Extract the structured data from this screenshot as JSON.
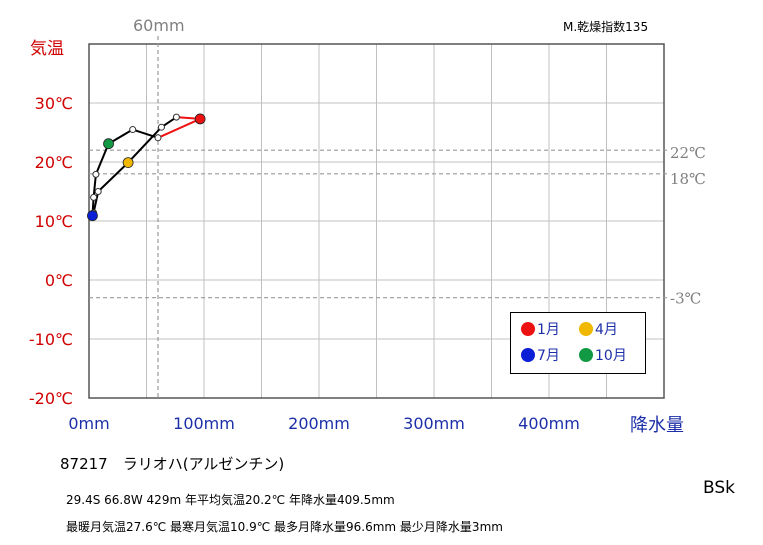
{
  "header": {
    "dryness_index": "M.乾燥指数135",
    "y_axis_title": "気温",
    "x_axis_title": "降水量",
    "ref_precip_label": "60mm"
  },
  "station": {
    "name_line": "87217　ラリオハ(アルゼンチン)",
    "info_line1": "29.4S 66.8W 429m 年平均気温20.2℃ 年降水量409.5mm",
    "info_line2": "最暖月気温27.6℃ 最寒月気温10.9℃ 最多月降水量96.6mm 最少月降水量3mm",
    "climate_code": "BSk"
  },
  "legend": {
    "jan": "1月",
    "apr": "4月",
    "jul": "7月",
    "oct": "10月"
  },
  "colors": {
    "jan": "#ee1111",
    "apr": "#f0b800",
    "jul": "#0a1fd6",
    "oct": "#119944",
    "axis_temp": "#d00000",
    "axis_precip": "#1c2fa8",
    "ref_line": "#999999"
  },
  "chart_data": {
    "type": "scatter",
    "title": "",
    "xlabel": "降水量",
    "ylabel": "気温",
    "xlim": [
      0,
      500
    ],
    "ylim": [
      -20,
      40
    ],
    "x_ticks": [
      "0mm",
      "100mm",
      "200mm",
      "300mm",
      "400mm"
    ],
    "x_tick_values": [
      0,
      100,
      200,
      300,
      400
    ],
    "y_ticks": [
      "-20℃",
      "-10℃",
      "0℃",
      "10℃",
      "20℃",
      "30℃"
    ],
    "y_tick_values": [
      -20,
      -10,
      0,
      10,
      20,
      30
    ],
    "grid": true,
    "reference_lines": {
      "horizontal": [
        {
          "value": 22,
          "label": "22℃"
        },
        {
          "value": 18,
          "label": "18℃"
        },
        {
          "value": -3,
          "label": "-3℃"
        }
      ],
      "vertical": [
        {
          "value": 60,
          "label": "60mm"
        }
      ]
    },
    "series": [
      {
        "months": [
          1,
          2,
          3,
          4,
          5,
          6,
          7,
          8,
          9,
          10,
          11,
          12
        ],
        "precip": [
          96.6,
          76.0,
          63.0,
          34.0,
          8.0,
          4.0,
          3.0,
          4.0,
          6.0,
          17.0,
          38.0,
          60.0
        ],
        "temp": [
          27.3,
          27.6,
          25.9,
          19.9,
          15.0,
          11.4,
          10.9,
          14.0,
          17.9,
          23.1,
          25.5,
          24.1
        ]
      }
    ],
    "highlighted_months": [
      1,
      4,
      7,
      10
    ],
    "legend_position": "bottom-right"
  }
}
